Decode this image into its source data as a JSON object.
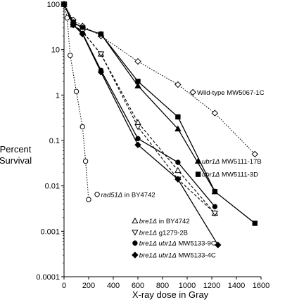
{
  "chart_data": {
    "type": "line",
    "title": "",
    "xlabel": "X-ray dose in Gray",
    "ylabel": [
      "Percent",
      "Survival"
    ],
    "xlim": [
      0,
      1600
    ],
    "ylim": [
      0.0001,
      100
    ],
    "yscale": "log",
    "x_ticks": [
      0,
      200,
      400,
      600,
      800,
      1000,
      1200,
      1400,
      1600
    ],
    "y_ticks": [
      {
        "value": 100,
        "label": "100"
      },
      {
        "value": 10,
        "label": "10"
      },
      {
        "value": 1,
        "label": "1"
      },
      {
        "value": 0.1,
        "label": "0.1"
      },
      {
        "value": 0.01,
        "label": "0.01"
      },
      {
        "value": 0.001,
        "label": "0.001"
      },
      {
        "value": 0.0001,
        "label": "0.0001"
      }
    ],
    "grid": false,
    "series": [
      {
        "name": "Wild-type MW5067-1C",
        "label_segments": [
          {
            "text": "Wild-type MW5067-1C",
            "italic": false
          }
        ],
        "marker": "open-diamond",
        "dash": "dotted",
        "color": "#000000",
        "x": [
          0,
          75,
          150,
          300,
          600,
          925,
          1225,
          1550
        ],
        "y": [
          100,
          45,
          33,
          20,
          5.5,
          1.7,
          0.4,
          0.05
        ]
      },
      {
        "name": "ubr1Δ MW5111-17B",
        "label_segments": [
          {
            "text": "ubr1Δ",
            "italic": true
          },
          {
            "text": " MW5111-17B",
            "italic": false
          }
        ],
        "marker": "filled-triangle",
        "dash": "solid",
        "color": "#000000",
        "x": [
          0,
          75,
          150,
          300,
          600,
          925,
          1225
        ],
        "y": [
          100,
          40,
          30,
          22,
          1.6,
          0.18,
          0.0075
        ]
      },
      {
        "name": "ubr1Δ MW5111-3D",
        "label_segments": [
          {
            "text": "ubr1Δ",
            "italic": true
          },
          {
            "text": " MW5111-3D",
            "italic": false
          }
        ],
        "marker": "filled-square",
        "dash": "solid",
        "color": "#000000",
        "x": [
          0,
          75,
          150,
          300,
          600,
          925,
          1225,
          1550
        ],
        "y": [
          100,
          40,
          30,
          22,
          2.0,
          0.33,
          0.0075,
          0.0015
        ]
      },
      {
        "name": "rad51Δ in BY4742",
        "label_segments": [
          {
            "text": "rad51Δ",
            "italic": true
          },
          {
            "text": " in BY4742",
            "italic": false
          }
        ],
        "marker": "open-circle",
        "dash": "dotted",
        "color": "#000000",
        "x": [
          0,
          25,
          50,
          100,
          150,
          175,
          200
        ],
        "y": [
          100,
          50,
          7.5,
          1.2,
          0.2,
          0.035,
          0.005
        ]
      },
      {
        "name": "bre1Δ in BY4742",
        "label_segments": [
          {
            "text": "bre1Δ",
            "italic": true
          },
          {
            "text": " in BY4742",
            "italic": false
          }
        ],
        "marker": "open-triangle",
        "dash": "dashed",
        "color": "#000000",
        "x": [
          0,
          75,
          150,
          300,
          600,
          925,
          1225
        ],
        "y": [
          100,
          35,
          25,
          8,
          0.25,
          0.022,
          0.0025
        ]
      },
      {
        "name": "bre1Δ g1279-2B",
        "label_segments": [
          {
            "text": "bre1Δ",
            "italic": true
          },
          {
            "text": " g1279-2B",
            "italic": false
          }
        ],
        "marker": "open-triangle-down",
        "dash": "dashed",
        "color": "#000000",
        "x": [
          0,
          75,
          150,
          300,
          600,
          925,
          1225
        ],
        "y": [
          100,
          35,
          25,
          8,
          0.2,
          0.014,
          0.0025
        ]
      },
      {
        "name": "bre1Δ ubr1Δ MW5133-9C",
        "label_segments": [
          {
            "text": "bre1Δ ubr1Δ",
            "italic": true
          },
          {
            "text": " MW5133-9C",
            "italic": false
          }
        ],
        "marker": "filled-circle",
        "dash": "solid",
        "color": "#000000",
        "x": [
          0,
          75,
          150,
          300,
          600,
          925,
          1225
        ],
        "y": [
          100,
          35,
          23,
          3.5,
          0.11,
          0.033,
          0.0035
        ]
      },
      {
        "name": "bre1Δ ubr1Δ MW5133-4C",
        "label_segments": [
          {
            "text": "bre1Δ ubr1Δ",
            "italic": true
          },
          {
            "text": " MW5133-4C",
            "italic": false
          }
        ],
        "marker": "filled-diamond",
        "dash": "solid",
        "color": "#000000",
        "x": [
          0,
          75,
          150,
          300,
          600,
          925,
          1250
        ],
        "y": [
          100,
          35,
          22,
          3.2,
          0.08,
          0.014,
          0.0005
        ]
      }
    ],
    "labels": [
      {
        "series": 0,
        "legend_x": 1030,
        "legend_y": 1.15,
        "text_x": 1080,
        "text_y": 1.15
      },
      {
        "series": 1,
        "legend_x": 1075,
        "legend_y": 0.035,
        "text_x": 1120,
        "text_y": 0.035
      },
      {
        "series": 2,
        "legend_x": 1075,
        "legend_y": 0.018,
        "text_x": 1120,
        "text_y": 0.018
      },
      {
        "series": 3,
        "legend_x": 255,
        "legend_y": 0.0065,
        "text_x": 300,
        "text_y": 0.0065
      },
      {
        "series": 4,
        "legend_x": 560,
        "legend_y": 0.0017,
        "text_x": 610,
        "text_y": 0.0017
      },
      {
        "series": 5,
        "legend_x": 560,
        "legend_y": 0.00095,
        "text_x": 610,
        "text_y": 0.00095
      },
      {
        "series": 6,
        "legend_x": 560,
        "legend_y": 0.00055,
        "text_x": 610,
        "text_y": 0.00055
      },
      {
        "series": 7,
        "legend_x": 560,
        "legend_y": 0.0003,
        "text_x": 610,
        "text_y": 0.0003
      }
    ]
  }
}
